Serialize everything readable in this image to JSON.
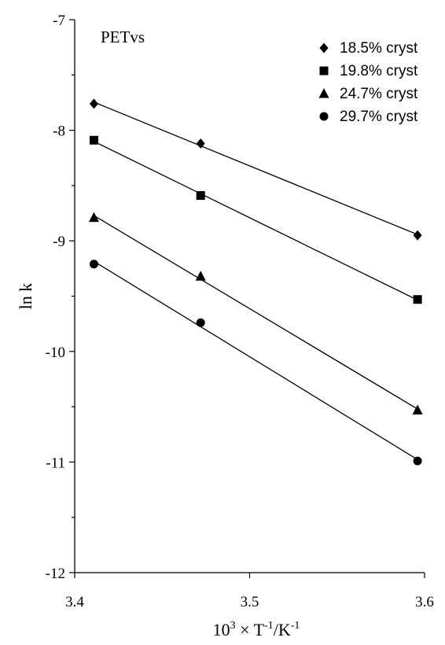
{
  "chart_data": {
    "type": "scatter",
    "xlabel_parts": [
      "10",
      "3",
      " × T",
      "-1",
      "/K",
      "-1"
    ],
    "ylabel": "ln k",
    "annotation": "PETvs",
    "xlim": [
      3.4,
      3.6
    ],
    "ylim": [
      -12,
      -7
    ],
    "xticks": [
      {
        "value": 3.4,
        "label": "3.4"
      },
      {
        "value": 3.5,
        "label": "3.5"
      },
      {
        "value": 3.6,
        "label": "3.6"
      }
    ],
    "yticks": [
      {
        "value": -7,
        "label": "-7"
      },
      {
        "value": -8,
        "label": "-8"
      },
      {
        "value": -9,
        "label": "-9"
      },
      {
        "value": -10,
        "label": "-10"
      },
      {
        "value": -11,
        "label": "-11"
      },
      {
        "value": -12,
        "label": "-12"
      }
    ],
    "y_minor_step": 0.5,
    "grid": false,
    "legend_position": "top-right",
    "fit_lines": true,
    "series": [
      {
        "name": "18.5% cryst",
        "marker": "diamond",
        "x": [
          3.411,
          3.472,
          3.596
        ],
        "y": [
          -7.76,
          -8.12,
          -8.95
        ]
      },
      {
        "name": "19.8% cryst",
        "marker": "square",
        "x": [
          3.411,
          3.472,
          3.596
        ],
        "y": [
          -8.09,
          -8.59,
          -9.53
        ]
      },
      {
        "name": "24.7% cryst",
        "marker": "triangle",
        "x": [
          3.411,
          3.472,
          3.596
        ],
        "y": [
          -8.79,
          -9.32,
          -10.53
        ]
      },
      {
        "name": "29.7% cryst",
        "marker": "circle",
        "x": [
          3.411,
          3.472,
          3.596
        ],
        "y": [
          -9.21,
          -9.74,
          -10.99
        ]
      }
    ]
  }
}
